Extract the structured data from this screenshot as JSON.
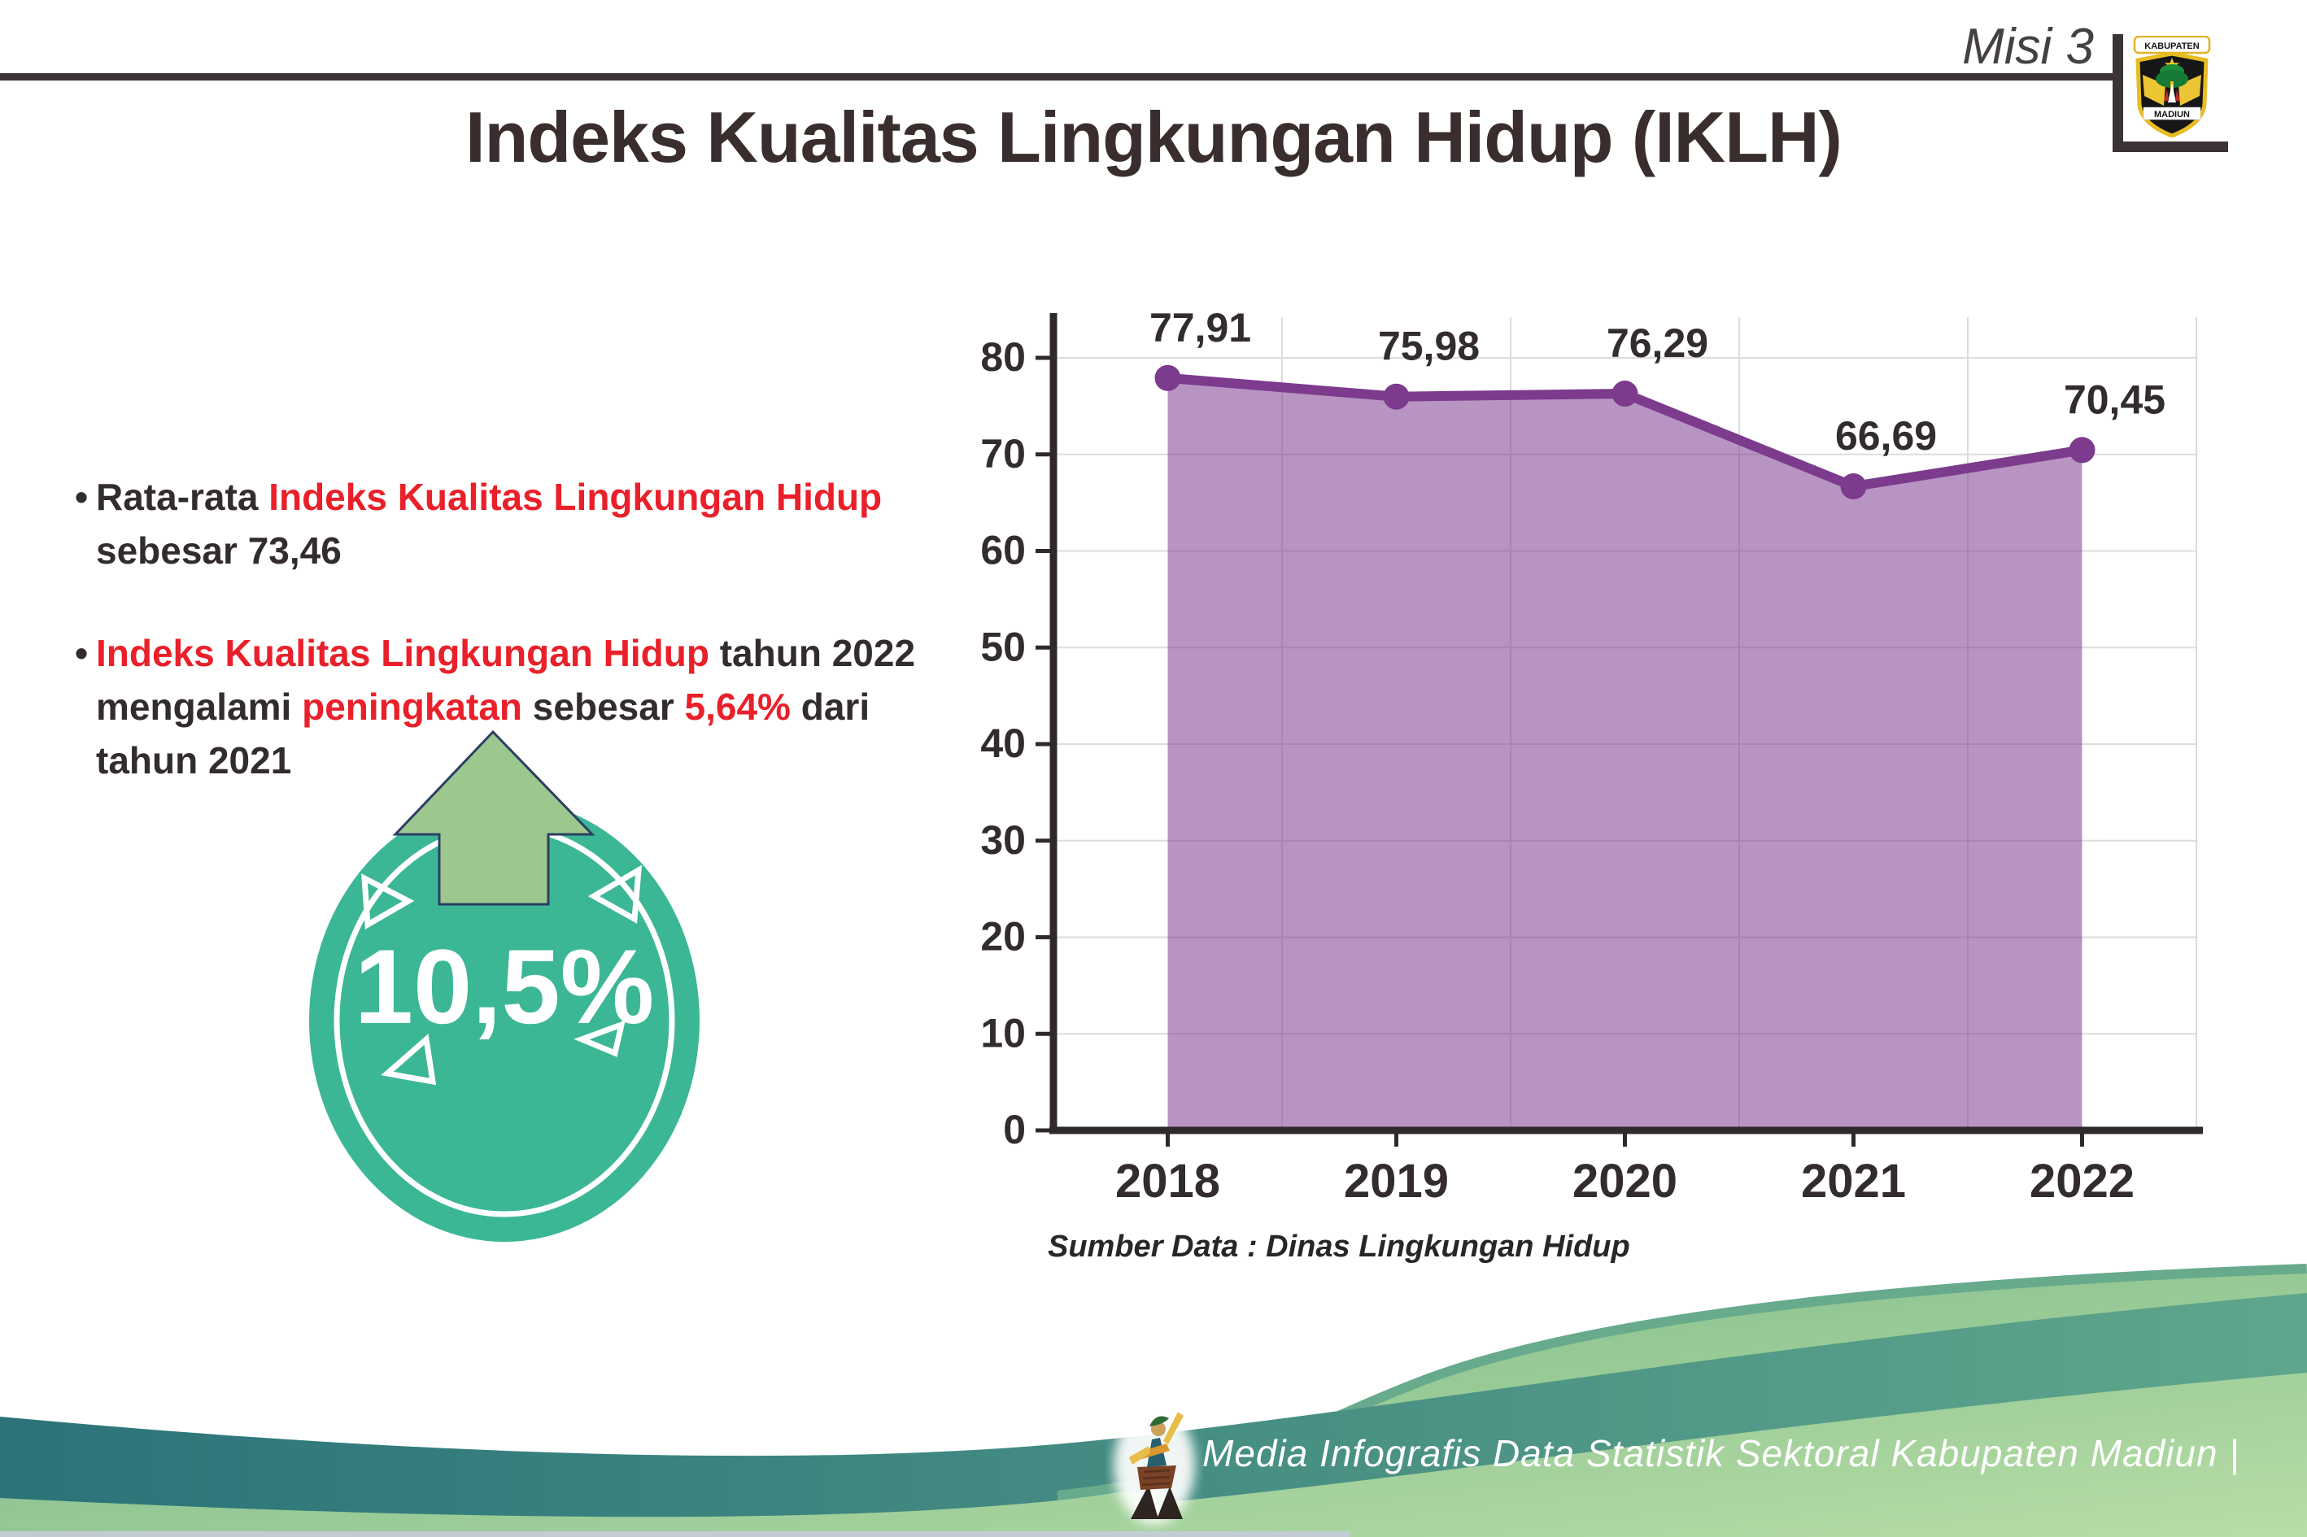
{
  "header": {
    "misi": "Misi 3",
    "title": "Indeks Kualitas Lingkungan Hidup (IKLH)",
    "logo": {
      "top_banner": "KABUPATEN",
      "bottom_band": "MADIUN"
    }
  },
  "bullets": [
    {
      "lines": [
        [
          {
            "t": "Rata-rata ",
            "c": "dark"
          },
          {
            "t": "Indeks Kualitas Lingkungan Hidup",
            "c": "red"
          }
        ],
        [
          {
            "t": "sebesar 73,46",
            "c": "dark"
          }
        ]
      ]
    },
    {
      "lines": [
        [
          {
            "t": "Indeks Kualitas Lingkungan Hidup",
            "c": "red"
          },
          {
            "t": " tahun 2022",
            "c": "dark"
          }
        ],
        [
          {
            "t": "mengalami ",
            "c": "dark"
          },
          {
            "t": "peningkatan",
            "c": "red"
          },
          {
            "t": " sebesar ",
            "c": "dark"
          },
          {
            "t": "5,64%",
            "c": "red"
          },
          {
            "t": " dari",
            "c": "dark"
          }
        ],
        [
          {
            "t": "tahun 2021",
            "c": "dark"
          }
        ]
      ]
    }
  ],
  "badge": {
    "value": "10,5%",
    "circle_color": "#3cb795",
    "arrow_color": "#9cc88e",
    "text_color": "#ffffff"
  },
  "chart_data": {
    "type": "area",
    "categories": [
      "2018",
      "2019",
      "2020",
      "2021",
      "2022"
    ],
    "values": [
      77.91,
      75.98,
      76.29,
      66.69,
      70.45
    ],
    "labels": [
      "77,91",
      "75,98",
      "76,29",
      "66,69",
      "70,45"
    ],
    "title": "",
    "xlabel": "",
    "ylabel": "",
    "ylim": [
      0,
      80
    ],
    "ytick_step": 10,
    "grid": true,
    "legend": false,
    "line_color": "#7c3b8d",
    "fill_color": "rgba(126,61,143,0.55)",
    "axis_color": "#2f292b",
    "grid_color": "#dcdcdc",
    "source": "Sumber Data : Dinas Lingkungan Hidup"
  },
  "footer": {
    "text": "Media Infografis Data Statistik Sektoral Kabupaten Madiun |",
    "teal_color_left": "#2b7379",
    "teal_color_right": "#5fa68c",
    "green_color_left": "#72b584",
    "green_color_right": "#b9dda6"
  }
}
